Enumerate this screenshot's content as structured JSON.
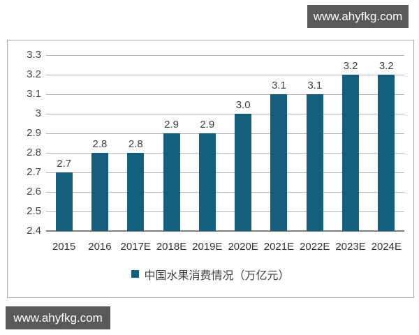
{
  "watermarks": {
    "top": "www.ahyfkg.com",
    "bottom": "www.ahyfkg.com"
  },
  "colors": {
    "bar": "#145F7B",
    "badge_background": "#59595B",
    "badge_text": "#FFFFFF",
    "gridline": "#B4B4B4",
    "axis_line": "#7F7F7F",
    "chart_border": "#ABABAB",
    "label_text": "#3F3F3F"
  },
  "chart_data": {
    "type": "bar",
    "title": "",
    "categories": [
      "2015",
      "2016",
      "2017E",
      "2018E",
      "2019E",
      "2020E",
      "2021E",
      "2022E",
      "2023E",
      "2024E"
    ],
    "values": [
      2.7,
      2.8,
      2.8,
      2.9,
      2.9,
      3.0,
      3.1,
      3.1,
      3.2,
      3.2
    ],
    "data_labels": [
      "2.7",
      "2.8",
      "2.8",
      "2.9",
      "2.9",
      "3.0",
      "3.1",
      "3.1",
      "3.2",
      "3.2"
    ],
    "legend_label": "中国水果消费情况（万亿元）",
    "legend_position": "bottom",
    "xlabel": "",
    "ylabel": "",
    "ylim": [
      2.4,
      3.3
    ],
    "ytick_values": [
      3.3,
      3.2,
      3.1,
      3.0,
      2.9,
      2.8,
      2.7,
      2.6,
      2.5,
      2.4
    ],
    "ytick_labels": [
      "3.3",
      "3.2",
      "3.1",
      "3",
      "2.9",
      "2.8",
      "2.7",
      "2.6",
      "2.5",
      "2.4"
    ],
    "grid": true
  }
}
